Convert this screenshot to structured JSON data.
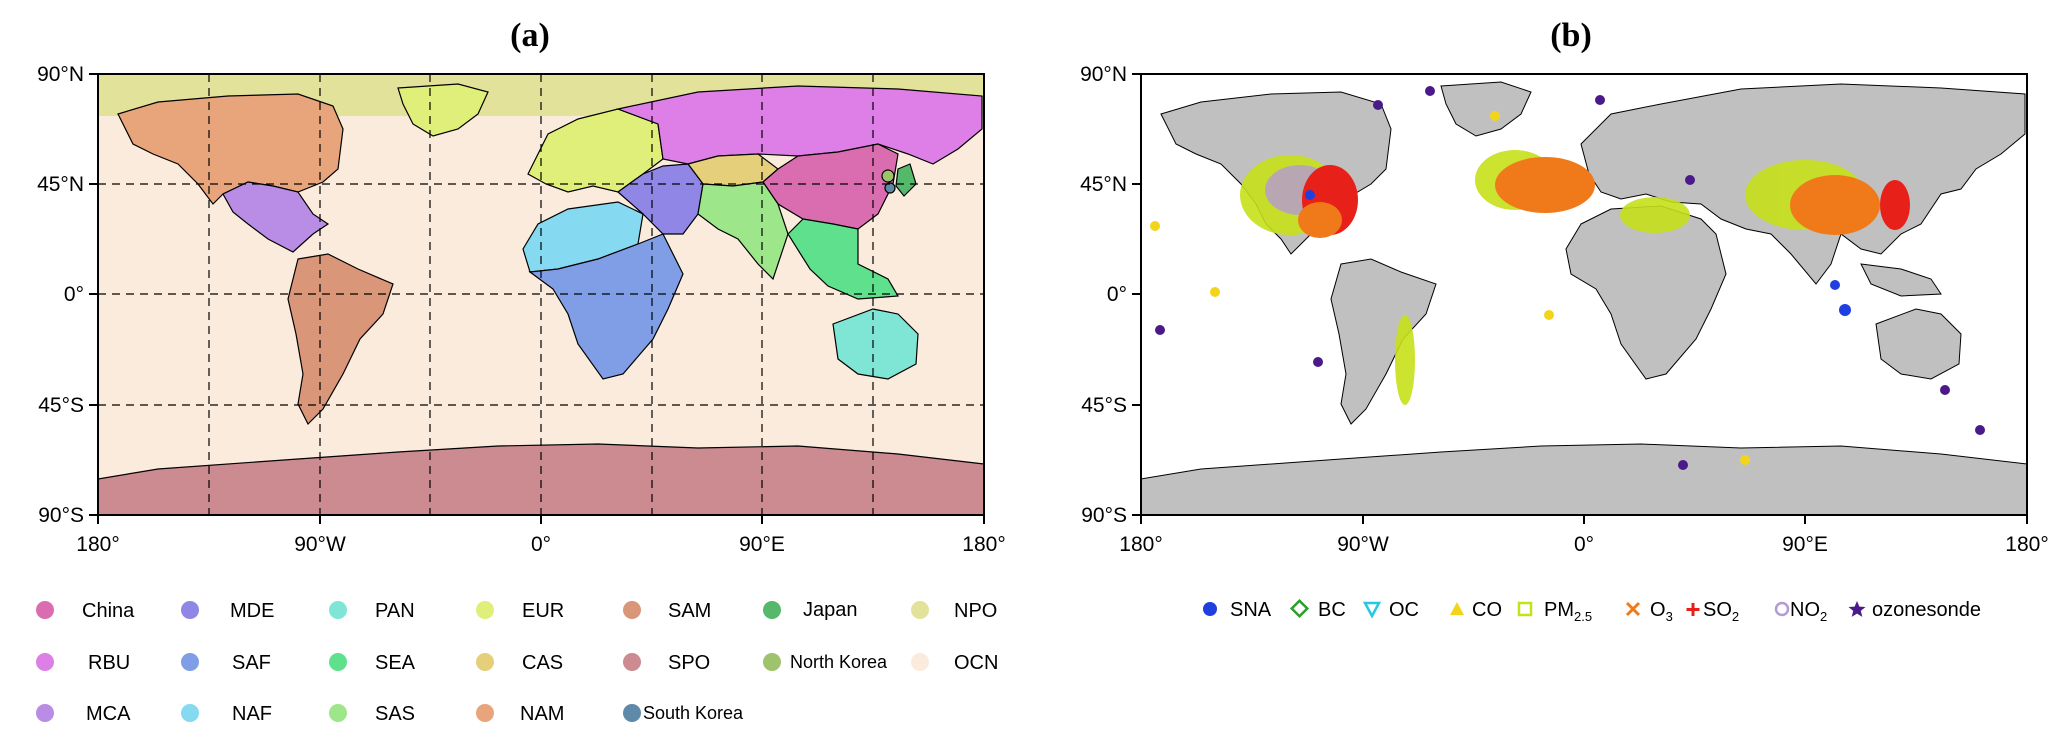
{
  "panel_a": {
    "title": "(a)",
    "lat_ticks": [
      "90°N",
      "45°N",
      "0°",
      "45°S",
      "90°S"
    ],
    "lon_ticks": [
      "180°",
      "90°W",
      "0°",
      "90°E",
      "180°"
    ],
    "legend": [
      {
        "label": "China",
        "color": "#d96db0"
      },
      {
        "label": "MDE",
        "color": "#8f86e6"
      },
      {
        "label": "PAN",
        "color": "#7fe6d6"
      },
      {
        "label": "EUR",
        "color": "#dfef7a"
      },
      {
        "label": "SAM",
        "color": "#d99679"
      },
      {
        "label": "Japan",
        "color": "#55b86b"
      },
      {
        "label": "NPO",
        "color": "#e2e29a"
      },
      {
        "label": "RBU",
        "color": "#dd7fe6"
      },
      {
        "label": "SAF",
        "color": "#7f9ee6"
      },
      {
        "label": "SEA",
        "color": "#5ee08c"
      },
      {
        "label": "CAS",
        "color": "#e6cf7a"
      },
      {
        "label": "SPO",
        "color": "#cc8a91"
      },
      {
        "label": "North Korea",
        "color": "#9fc36c"
      },
      {
        "label": "OCN",
        "color": "#fbebdc"
      },
      {
        "label": "MCA",
        "color": "#b98ce6"
      },
      {
        "label": "NAF",
        "color": "#85d9f0"
      },
      {
        "label": "SAS",
        "color": "#9ee68a"
      },
      {
        "label": "NAM",
        "color": "#e8a57b"
      },
      {
        "label": "South Korea",
        "color": "#5f89a8"
      }
    ]
  },
  "panel_b": {
    "title": "(b)",
    "lat_ticks": [
      "90°N",
      "45°N",
      "0°",
      "45°S",
      "90°S"
    ],
    "lon_ticks": [
      "180°",
      "90°W",
      "0°",
      "90°E",
      "180°"
    ],
    "legend": [
      {
        "label": "SNA",
        "symbol": "dot",
        "color": "#1f3fe0"
      },
      {
        "label": "BC",
        "symbol": "diamond",
        "color": "#2aa02a"
      },
      {
        "label": "OC",
        "symbol": "tri-down",
        "color": "#25c8e0"
      },
      {
        "label": "CO",
        "symbol": "tri-up",
        "color": "#f2d51a"
      },
      {
        "label": "PM",
        "sub": "2.5",
        "symbol": "square",
        "color": "#c6e01a"
      },
      {
        "label": "O",
        "sub": "3",
        "symbol": "cross",
        "color": "#f07a1a"
      },
      {
        "label": "SO",
        "sub": "2",
        "symbol": "plus",
        "color": "#e8201a"
      },
      {
        "label": "NO",
        "sub": "2",
        "symbol": "circle",
        "color": "#b49ad6"
      },
      {
        "label": "ozonesonde",
        "symbol": "star",
        "color": "#4b1a8a"
      }
    ]
  }
}
